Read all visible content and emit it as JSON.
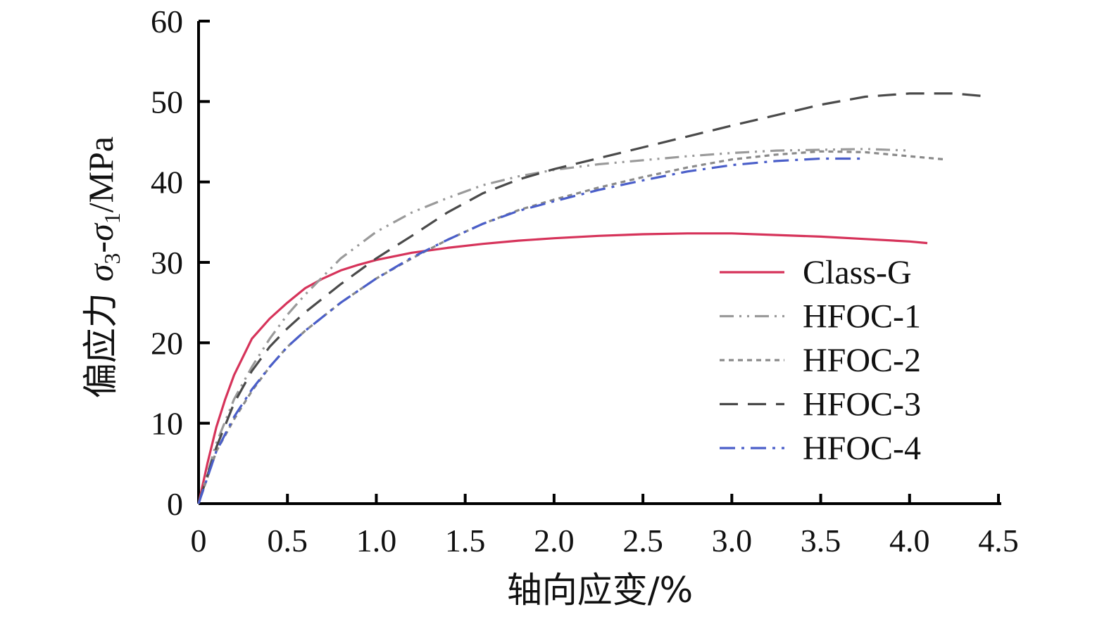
{
  "chart_data": {
    "type": "line",
    "xlabel": "轴向应变/%",
    "ylabel": {
      "prefix": "偏应力 ",
      "sym_a": "σ",
      "sub_a": "3",
      "dash": "-",
      "sym_b": "σ",
      "sub_b": "1",
      "unit": "/MPa"
    },
    "xlim": [
      0,
      4.5
    ],
    "ylim": [
      0,
      60
    ],
    "x_ticks": [
      0,
      0.5,
      1.0,
      1.5,
      2.0,
      2.5,
      3.0,
      3.5,
      4.0,
      4.5
    ],
    "x_tick_labels": [
      "0",
      "0.5",
      "1.0",
      "1.5",
      "2.0",
      "2.5",
      "3.0",
      "3.5",
      "4.0",
      "4.5"
    ],
    "y_ticks": [
      0,
      10,
      20,
      30,
      40,
      50,
      60
    ],
    "y_tick_labels": [
      "0",
      "10",
      "20",
      "30",
      "40",
      "50",
      "60"
    ],
    "grid": false,
    "legend_position": "right-middle",
    "series": [
      {
        "name": "Class-G",
        "color": "#d6335a",
        "dash": "solid",
        "x": [
          0,
          0.05,
          0.1,
          0.15,
          0.2,
          0.3,
          0.4,
          0.5,
          0.6,
          0.7,
          0.8,
          0.9,
          1.0,
          1.2,
          1.4,
          1.6,
          1.8,
          2.0,
          2.25,
          2.5,
          2.75,
          3.0,
          3.25,
          3.5,
          3.75,
          4.0,
          4.1
        ],
        "y": [
          0,
          5,
          9.5,
          13,
          16,
          20.5,
          23,
          25,
          26.8,
          28,
          29,
          29.7,
          30.3,
          31.2,
          31.8,
          32.3,
          32.7,
          33.0,
          33.3,
          33.5,
          33.6,
          33.6,
          33.4,
          33.2,
          32.9,
          32.6,
          32.4
        ]
      },
      {
        "name": "HFOC-1",
        "color": "#9a9a9a",
        "dash": "dash-dot-dot",
        "x": [
          0,
          0.1,
          0.2,
          0.3,
          0.4,
          0.5,
          0.6,
          0.8,
          1.0,
          1.2,
          1.4,
          1.6,
          1.8,
          2.0,
          2.25,
          2.5,
          2.75,
          3.0,
          3.25,
          3.5,
          3.75,
          4.0
        ],
        "y": [
          0,
          7.5,
          13,
          17,
          20.5,
          23.5,
          26,
          30.5,
          33.8,
          36.2,
          38,
          39.6,
          40.7,
          41.5,
          42.2,
          42.7,
          43.2,
          43.6,
          43.9,
          44.0,
          44.1,
          43.9
        ]
      },
      {
        "name": "HFOC-2",
        "color": "#8a8a8a",
        "dash": "short-dash",
        "x": [
          0,
          0.1,
          0.2,
          0.3,
          0.4,
          0.5,
          0.6,
          0.8,
          1.0,
          1.2,
          1.4,
          1.6,
          1.8,
          2.0,
          2.25,
          2.5,
          2.75,
          3.0,
          3.25,
          3.5,
          3.75,
          4.0,
          4.2
        ],
        "y": [
          0,
          6.5,
          10.5,
          14,
          17,
          19.5,
          21.5,
          25,
          28,
          30.5,
          32.8,
          34.8,
          36.5,
          37.8,
          39.3,
          40.6,
          41.8,
          42.8,
          43.4,
          43.8,
          43.7,
          43.2,
          42.8
        ]
      },
      {
        "name": "HFOC-3",
        "color": "#4a4a4a",
        "dash": "long-dash",
        "x": [
          0,
          0.1,
          0.2,
          0.3,
          0.4,
          0.5,
          0.6,
          0.8,
          1.0,
          1.2,
          1.4,
          1.6,
          1.8,
          2.0,
          2.5,
          3.0,
          3.5,
          3.75,
          4.0,
          4.25,
          4.4
        ],
        "y": [
          0,
          7,
          12.5,
          16.5,
          19.5,
          21.8,
          23.8,
          27.3,
          30.5,
          33.3,
          36.2,
          38.6,
          40.3,
          41.6,
          44.3,
          47,
          49.6,
          50.6,
          51.0,
          51.0,
          50.7
        ]
      },
      {
        "name": "HFOC-4",
        "color": "#4a5ec9",
        "dash": "dash-dot",
        "x": [
          0,
          0.1,
          0.2,
          0.3,
          0.4,
          0.5,
          0.6,
          0.8,
          1.0,
          1.2,
          1.4,
          1.6,
          1.8,
          2.0,
          2.25,
          2.5,
          2.75,
          3.0,
          3.25,
          3.5,
          3.75
        ],
        "y": [
          0,
          6.5,
          10.8,
          14.2,
          17,
          19.5,
          21.5,
          25,
          28,
          30.6,
          32.8,
          34.8,
          36.4,
          37.6,
          39,
          40.2,
          41.3,
          42.1,
          42.6,
          42.9,
          42.9
        ]
      }
    ]
  }
}
